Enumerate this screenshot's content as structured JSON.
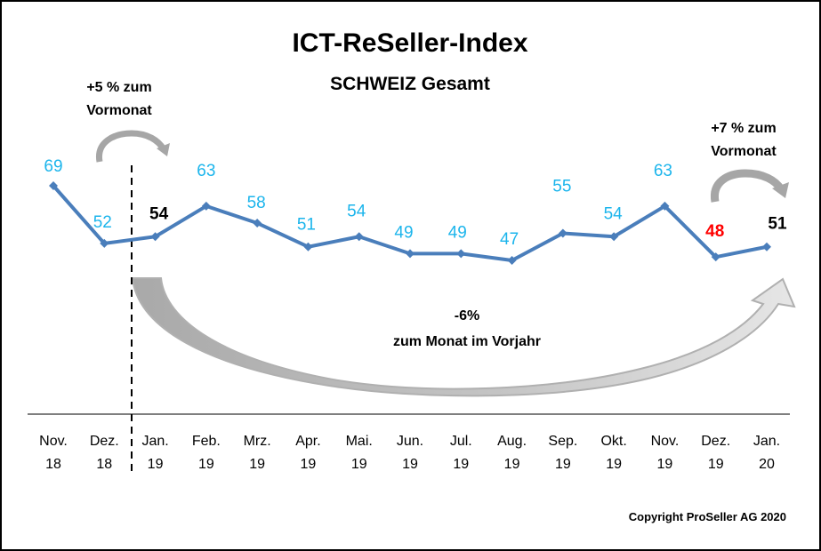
{
  "chart_data": {
    "type": "line",
    "title": "ICT-ReSeller-Index",
    "subtitle": "SCHWEIZ Gesamt",
    "xlabel": "",
    "ylabel": "",
    "ylim": [
      40,
      72
    ],
    "grid": false,
    "legend": "none",
    "categories": [
      [
        "Nov.",
        "18"
      ],
      [
        "Dez.",
        "18"
      ],
      [
        "Jan.",
        "19"
      ],
      [
        "Feb.",
        "19"
      ],
      [
        "Mrz.",
        "19"
      ],
      [
        "Apr.",
        "19"
      ],
      [
        "Mai.",
        "19"
      ],
      [
        "Jun.",
        "19"
      ],
      [
        "Jul.",
        "19"
      ],
      [
        "Aug.",
        "19"
      ],
      [
        "Sep.",
        "19"
      ],
      [
        "Okt.",
        "19"
      ],
      [
        "Nov.",
        "19"
      ],
      [
        "Dez.",
        "19"
      ],
      [
        "Jan.",
        "20"
      ]
    ],
    "series": [
      {
        "name": "ICT-ReSeller-Index",
        "values": [
          69,
          52,
          54,
          63,
          58,
          51,
          54,
          49,
          49,
          47,
          55,
          54,
          63,
          48,
          51
        ],
        "color": "#4a7ebb"
      }
    ],
    "label_colors": {
      "default": "#1cb5ec",
      "highlight_black": "#000000",
      "highlight_red": "#ff0000"
    },
    "highlight": {
      "black_indices": [
        2,
        14
      ],
      "red_indices": [
        13
      ]
    },
    "annotations": {
      "left_change": {
        "line1": "+5 % zum",
        "line2": "Vormonat"
      },
      "right_change": {
        "line1": "+7 % zum",
        "line2": "Vormonat"
      },
      "yoy_change": {
        "line1": "-6%",
        "line2": "zum Monat im Vorjahr"
      }
    },
    "copyright": "Copyright ProSeller AG 2020"
  }
}
